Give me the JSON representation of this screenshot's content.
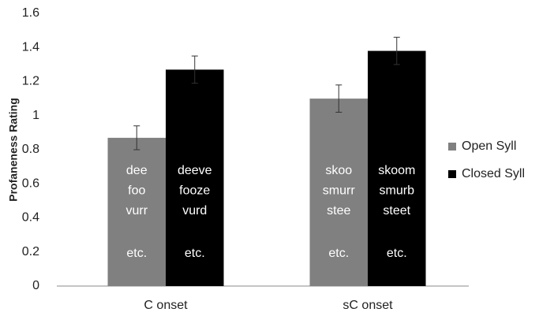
{
  "chart_data": {
    "type": "bar",
    "y_label": "Profaneness Rating",
    "categories": [
      "C onset",
      "sC onset"
    ],
    "series": [
      {
        "name": "Open Syll",
        "color": "#808080",
        "values": [
          0.87,
          1.1
        ],
        "errors": [
          0.07,
          0.08
        ],
        "annotations": [
          [
            "dee",
            "foo",
            "vurr",
            "etc."
          ],
          [
            "skoo",
            "smurr",
            "stee",
            "etc."
          ]
        ]
      },
      {
        "name": "Closed Syll",
        "color": "#000000",
        "values": [
          1.27,
          1.38
        ],
        "errors": [
          0.08,
          0.08
        ],
        "annotations": [
          [
            "deeve",
            "fooze",
            "vurd",
            "etc."
          ],
          [
            "skoom",
            "smurb",
            "steet",
            "etc."
          ]
        ]
      }
    ],
    "ylim": [
      0,
      1.6
    ],
    "yticks": [
      0,
      0.2,
      0.4,
      0.6,
      0.8,
      1,
      1.2,
      1.4,
      1.6
    ],
    "grid": false,
    "legend": "right"
  }
}
